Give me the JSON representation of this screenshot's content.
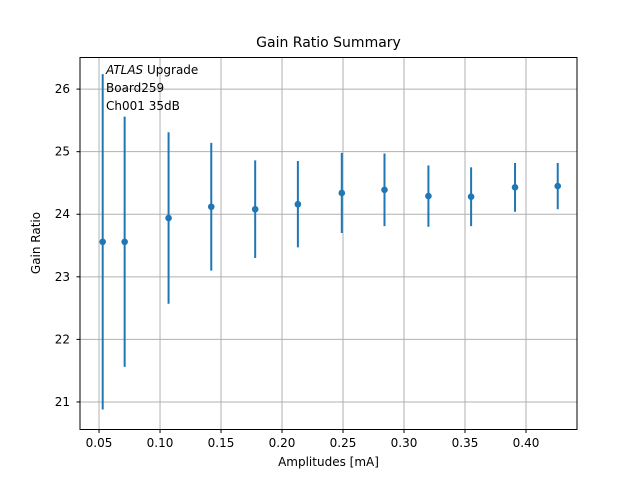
{
  "chart_data": {
    "type": "scatter",
    "title": "Gain Ratio Summary",
    "xlabel": "Amplitudes [mA]",
    "ylabel": "Gain Ratio",
    "x": [
      0.053,
      0.071,
      0.107,
      0.142,
      0.178,
      0.213,
      0.249,
      0.284,
      0.32,
      0.355,
      0.391,
      0.426
    ],
    "y": [
      23.56,
      23.56,
      23.94,
      24.12,
      24.08,
      24.16,
      24.34,
      24.39,
      24.29,
      24.28,
      24.43,
      24.45
    ],
    "yerr": [
      2.68,
      2.0,
      1.37,
      1.02,
      0.78,
      0.69,
      0.64,
      0.58,
      0.49,
      0.47,
      0.39,
      0.37
    ],
    "xlim": [
      0.0344,
      0.4418
    ],
    "ylim": [
      20.56,
      26.505
    ],
    "xticks": {
      "values": [
        0.05,
        0.1,
        0.15,
        0.2,
        0.25,
        0.3,
        0.35,
        0.4
      ],
      "labels": [
        "0.05",
        "0.10",
        "0.15",
        "0.20",
        "0.25",
        "0.30",
        "0.35",
        "0.40"
      ]
    },
    "yticks": {
      "values": [
        21,
        22,
        23,
        24,
        25,
        26
      ],
      "labels": [
        "21",
        "22",
        "23",
        "24",
        "25",
        "26"
      ]
    },
    "grid": true,
    "legend": null,
    "marker": "o",
    "marker_color": "#1f77b4",
    "grid_color": "#b0b0b0",
    "spine_color": "#000000",
    "annotation": {
      "line1_italic": "ATLAS",
      "line1_rest": " Upgrade",
      "line2": "Board259",
      "line3": "Ch001 35dB"
    }
  }
}
